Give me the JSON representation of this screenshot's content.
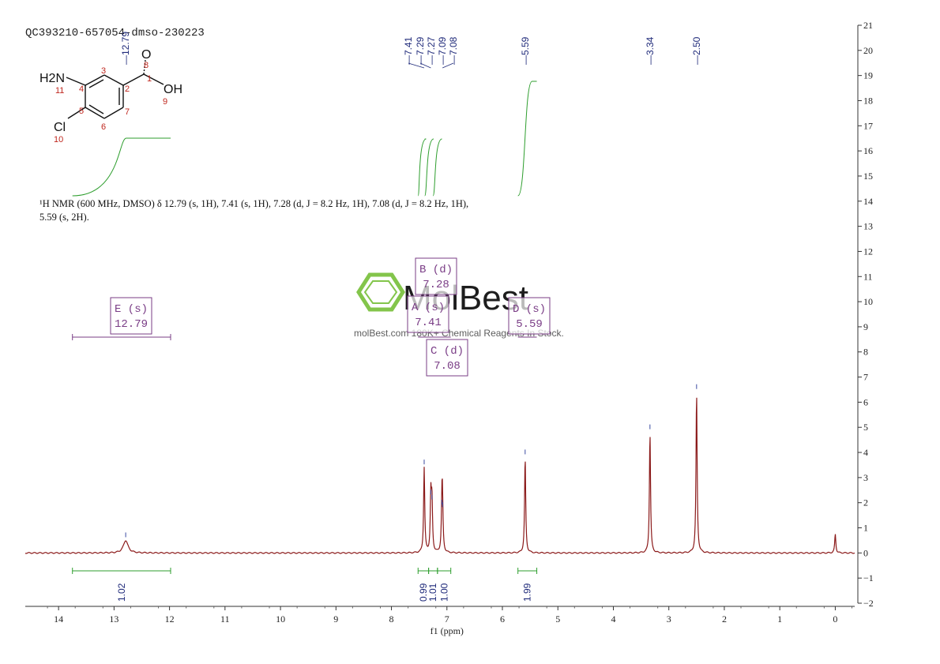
{
  "sample_id": "QC393210-657054-dmso-230223",
  "nmr_description": "¹H NMR (600 MHz, DMSO) δ 12.79 (s, 1H), 7.41 (s, 1H), 7.28 (d, J = 8.2 Hz, 1H), 7.08 (d, J = 8.2 Hz, 1H), 5.59 (s, 2H).",
  "watermark": {
    "brand": "MolBest",
    "tagline": "molBest.com  180K+ Chemical Reagents In Stock."
  },
  "molecule": {
    "atoms": [
      "H2N",
      "O",
      "OH",
      "Cl"
    ],
    "numbers": [
      "1",
      "2",
      "3",
      "4",
      "5",
      "6",
      "7",
      "8",
      "9",
      "10",
      "11"
    ]
  },
  "colors": {
    "spectrum": "#8b1a1a",
    "integral": "#2e9e2e",
    "label": "#1f2a7a",
    "multiplet": "#7a3d86"
  },
  "chart_data": {
    "type": "line",
    "xlabel": "f1 (ppm)",
    "xlim": [
      14.6,
      -0.35
    ],
    "ylim": [
      -2,
      21
    ],
    "x_ticks": [
      14,
      13,
      12,
      11,
      10,
      9,
      8,
      7,
      6,
      5,
      4,
      3,
      2,
      1,
      0
    ],
    "y_ticks": [
      -2,
      -1,
      0,
      1,
      2,
      3,
      4,
      5,
      6,
      7,
      8,
      9,
      10,
      11,
      12,
      13,
      14,
      15,
      16,
      17,
      18,
      19,
      20,
      21
    ],
    "peaks": [
      {
        "ppm": 12.79,
        "height": 0.5
      },
      {
        "ppm": 7.41,
        "height": 3.4
      },
      {
        "ppm": 7.29,
        "height": 2.2
      },
      {
        "ppm": 7.27,
        "height": 2.0
      },
      {
        "ppm": 7.09,
        "height": 1.8
      },
      {
        "ppm": 7.08,
        "height": 1.7
      },
      {
        "ppm": 5.59,
        "height": 3.8
      },
      {
        "ppm": 3.34,
        "height": 4.8
      },
      {
        "ppm": 2.5,
        "height": 6.4
      },
      {
        "ppm": 0.0,
        "height": 0.75
      }
    ],
    "peak_labels": [
      "12.79",
      "7.41",
      "7.29",
      "7.27",
      "7.09",
      "7.08",
      "5.59",
      "3.34",
      "2.50"
    ],
    "integrals": [
      {
        "from": 13.75,
        "to": 11.98,
        "label": "1.02"
      },
      {
        "from": 7.52,
        "to": 7.33,
        "label": "0.99"
      },
      {
        "from": 7.33,
        "to": 7.17,
        "label": "1.01"
      },
      {
        "from": 7.17,
        "to": 6.93,
        "label": "1.00"
      },
      {
        "from": 5.72,
        "to": 5.38,
        "label": "1.99"
      }
    ],
    "multiplets": [
      {
        "name": "E (s)",
        "shift": "12.79"
      },
      {
        "name": "B (d)",
        "shift": "7.28"
      },
      {
        "name": "A (s)",
        "shift": "7.41"
      },
      {
        "name": "C (d)",
        "shift": "7.08"
      },
      {
        "name": "D (s)",
        "shift": "5.59"
      }
    ]
  }
}
